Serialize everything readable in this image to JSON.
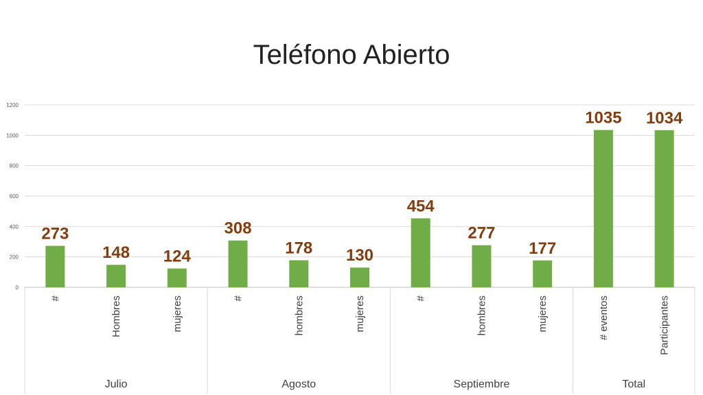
{
  "title": "Teléfono Abierto",
  "colors": {
    "bar": "#70ad47",
    "label": "#843c0c",
    "grid": "#d9d9d9",
    "axis": "#bfbfbf"
  },
  "chart_data": {
    "type": "bar",
    "ylim": [
      0,
      1200
    ],
    "yticks": [
      0,
      200,
      400,
      600,
      800,
      1000,
      1200
    ],
    "grid": true,
    "data_labels": true,
    "groups": [
      {
        "name": "Julio",
        "categories": [
          "#",
          "Hombres",
          "mujeres"
        ],
        "values": [
          273,
          148,
          124
        ]
      },
      {
        "name": "Agosto",
        "categories": [
          "#",
          "hombres",
          "mujeres"
        ],
        "values": [
          308,
          178,
          130
        ]
      },
      {
        "name": "Septiembre",
        "categories": [
          "#",
          "hombres",
          "mujeres"
        ],
        "values": [
          454,
          277,
          177
        ]
      },
      {
        "name": "Total",
        "categories": [
          "# eventos",
          "Participantes"
        ],
        "values": [
          1035,
          1034
        ]
      }
    ]
  }
}
